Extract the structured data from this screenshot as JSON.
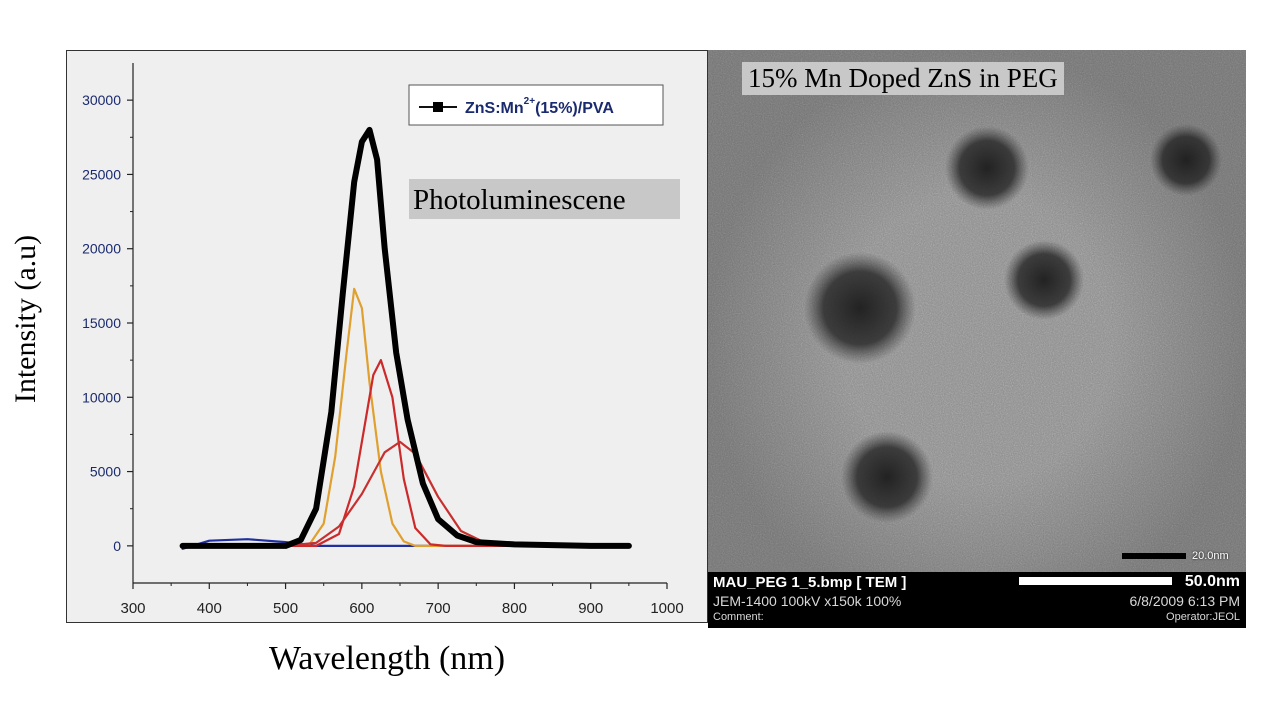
{
  "chart_data": {
    "type": "line",
    "xlabel": "Wavelength (nm)",
    "ylabel": "Intensity (a.u)",
    "annotation": "Photoluminescene",
    "xlim": [
      300,
      1000
    ],
    "ylim": [
      -2500,
      32500
    ],
    "xticks": [
      "300",
      "400",
      "500",
      "600",
      "700",
      "800",
      "900",
      "1000"
    ],
    "yticks": [
      "0",
      "5000",
      "10000",
      "15000",
      "20000",
      "25000",
      "30000"
    ],
    "legend_placement": "top-right",
    "legend": {
      "marker": "—■—",
      "base": "ZnS:Mn",
      "sup": "2+",
      "rest": "(15%)/PVA"
    },
    "series": [
      {
        "name": "ZnS:Mn2+(15%)/PVA",
        "color": "#000000",
        "x": [
          365,
          400,
          450,
          500,
          520,
          540,
          560,
          575,
          590,
          600,
          610,
          620,
          630,
          645,
          660,
          680,
          700,
          725,
          750,
          800,
          850,
          900,
          950
        ],
        "y": [
          0,
          0,
          0,
          0,
          400,
          2500,
          9000,
          17000,
          24500,
          27200,
          28000,
          26000,
          20000,
          13000,
          8500,
          4200,
          1800,
          700,
          250,
          100,
          50,
          0,
          0
        ]
      },
      {
        "color": "#e0a030",
        "x": [
          365,
          500,
          530,
          550,
          565,
          580,
          590,
          600,
          610,
          625,
          640,
          655,
          670,
          700,
          950
        ],
        "y": [
          0,
          0,
          0,
          1500,
          6000,
          13000,
          17300,
          16000,
          11000,
          5000,
          1500,
          300,
          0,
          0,
          0
        ]
      },
      {
        "color": "#cc2a2a",
        "x": [
          365,
          540,
          570,
          590,
          605,
          615,
          625,
          640,
          655,
          670,
          690,
          710,
          950
        ],
        "y": [
          0,
          0,
          800,
          4000,
          8500,
          11500,
          12500,
          10000,
          4500,
          1200,
          100,
          0,
          0
        ]
      },
      {
        "color": "#c83030",
        "x": [
          365,
          500,
          540,
          570,
          600,
          630,
          650,
          670,
          700,
          730,
          760,
          800,
          950
        ],
        "y": [
          0,
          0,
          200,
          1300,
          3500,
          6300,
          7000,
          6200,
          3300,
          1000,
          250,
          0,
          0
        ]
      },
      {
        "color": "#2030a0",
        "x": [
          365,
          400,
          450,
          500,
          540,
          600,
          700,
          800,
          950
        ],
        "y": [
          -200,
          350,
          450,
          250,
          0,
          0,
          0,
          0,
          0
        ]
      }
    ]
  },
  "tem": {
    "title": "15% Mn Doped ZnS in PEG",
    "scale_small": "20.0nm",
    "filename": "MAU_PEG 1_5.bmp [ TEM ]",
    "instrument": "JEM-1400 100kV x150k 100%",
    "comment": "Comment:",
    "scale_large": "50.0nm",
    "datetime": "6/8/2009 6:13 PM",
    "operator": "Operator:JEOL"
  }
}
